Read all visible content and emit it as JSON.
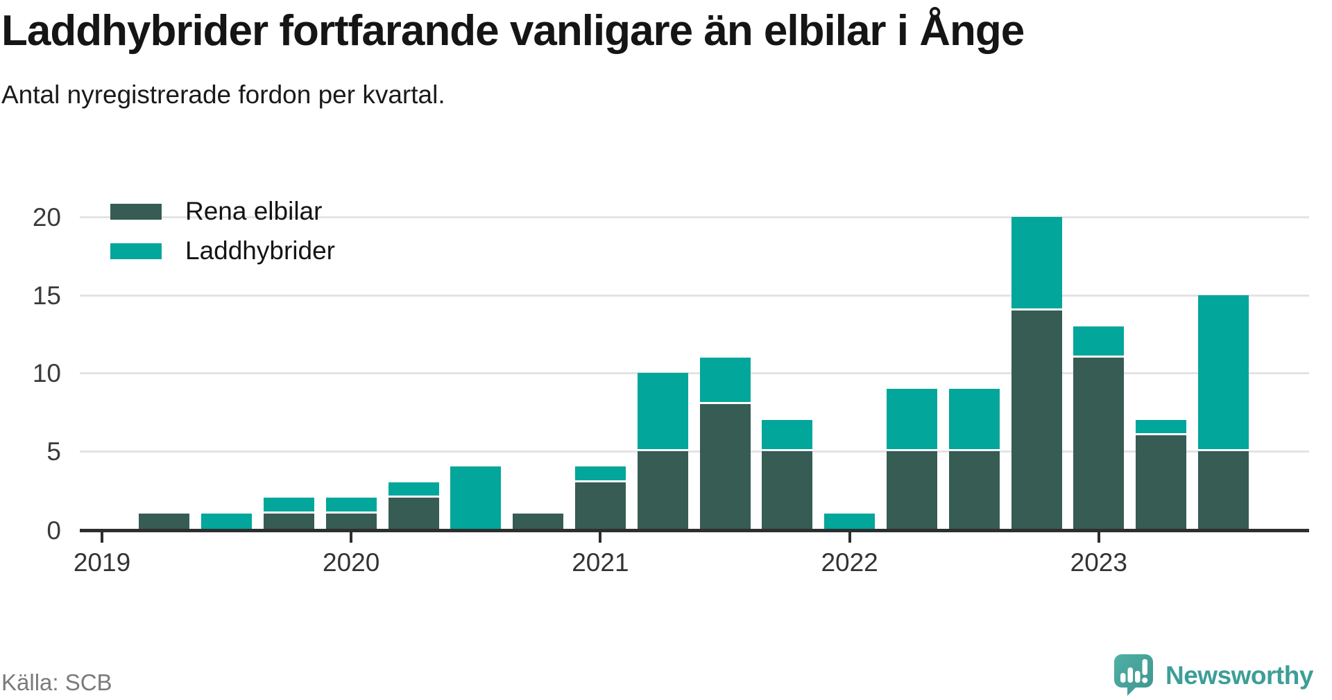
{
  "page": {
    "title": "Laddhybrider fortfarande vanligare än elbilar i Ånge",
    "subtitle": "Antal nyregistrerade fordon per kvartal.",
    "source": "Källa: SCB"
  },
  "branding": {
    "name": "Newsworthy",
    "icon": "newsworthy-speech-bubble-chart-icon",
    "icon_color": "#47a49c",
    "text_color": "#3d9e97"
  },
  "colors": {
    "rena_elbilar": "#365c53",
    "laddhybrider": "#02a69a",
    "axis": "#2e2e2e",
    "gridline": "#e3e3e3",
    "tick_label": "#3a3a3a"
  },
  "chart_data": {
    "type": "bar",
    "stacked": true,
    "title": "Laddhybrider fortfarande vanligare än elbilar i Ånge",
    "subtitle": "Antal nyregistrerade fordon per kvartal.",
    "xlabel": "",
    "ylabel": "",
    "categories": [
      "2019 Q1",
      "2019 Q2",
      "2019 Q3",
      "2019 Q4",
      "2020 Q1",
      "2020 Q2",
      "2020 Q3",
      "2020 Q4",
      "2021 Q1",
      "2021 Q2",
      "2021 Q3",
      "2021 Q4",
      "2022 Q1",
      "2022 Q2",
      "2022 Q3",
      "2022 Q4",
      "2023 Q1",
      "2023 Q2",
      "2023 Q3"
    ],
    "series": [
      {
        "name": "Rena elbilar",
        "color": "#365c53",
        "values": [
          0,
          1,
          0,
          1,
          1,
          2,
          0,
          1,
          3,
          5,
          8,
          5,
          0,
          5,
          5,
          14,
          11,
          6,
          5
        ]
      },
      {
        "name": "Laddhybrider",
        "color": "#02a69a",
        "values": [
          0,
          0,
          1,
          1,
          1,
          1,
          4,
          0,
          1,
          5,
          3,
          2,
          1,
          4,
          4,
          6,
          2,
          1,
          10
        ]
      }
    ],
    "totals": [
      0,
      1,
      1,
      2,
      2,
      3,
      4,
      1,
      4,
      10,
      11,
      7,
      1,
      9,
      9,
      20,
      13,
      7,
      15
    ],
    "y_ticks": [
      0,
      5,
      10,
      15,
      20
    ],
    "ylim": [
      0,
      22
    ],
    "x_year_labels": [
      "2019",
      "2020",
      "2021",
      "2022",
      "2023"
    ],
    "grid": "horizontal",
    "legend_position": "top-left"
  }
}
